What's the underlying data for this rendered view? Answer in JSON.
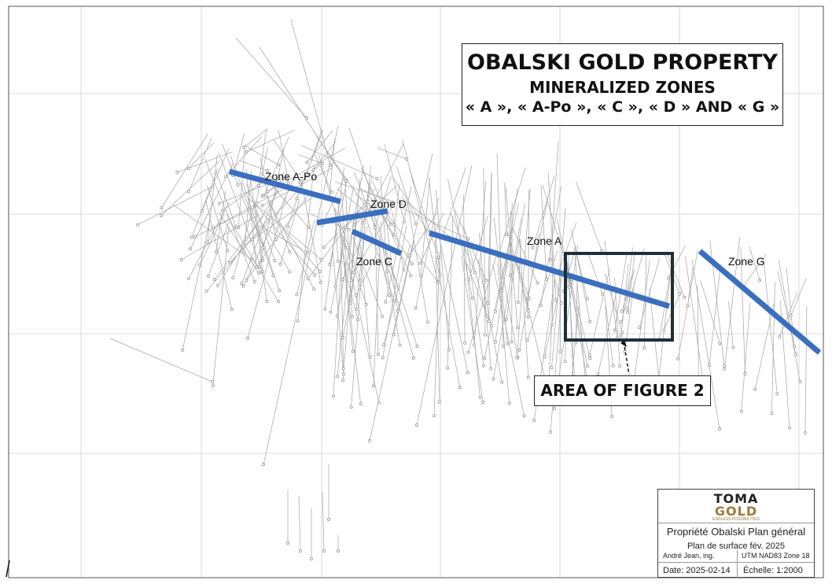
{
  "title": {
    "main": "OBALSKI GOLD PROPERTY",
    "sub": "MINERALIZED ZONES",
    "zones_line": "« A », « A-Po », « C », « D » AND « G »"
  },
  "callout": {
    "label": "AREA OF FIGURE 2"
  },
  "zones": [
    {
      "id": "A-Po",
      "label": "Zone A-Po"
    },
    {
      "id": "D",
      "label": "Zone D"
    },
    {
      "id": "C",
      "label": "Zone C"
    },
    {
      "id": "A",
      "label": "Zone A"
    },
    {
      "id": "G",
      "label": "Zone G"
    }
  ],
  "colors": {
    "zone_line": "#3a6fbf",
    "figure_box": "#1f2f3a",
    "grid": "#c8c8c8",
    "drillhole": "#9a9a9a",
    "logo_gold": "#9c7b3a"
  },
  "titleblock": {
    "logo_line1": "TOMA",
    "logo_line2": "GOLD",
    "logo_tagline": "ENDLESS POSSIBILITIES",
    "plan_title": "Propriété Obalski Plan général",
    "plan_sub": "Plan de surface fév. 2025",
    "author": "André Jean, ing.",
    "datum": "UTM NAD83 Zone 18",
    "date": "Date: 2025-02-14",
    "scale": "Échelle: 1:2000"
  },
  "map_icons": {
    "north_arrow": "tick-icon"
  }
}
